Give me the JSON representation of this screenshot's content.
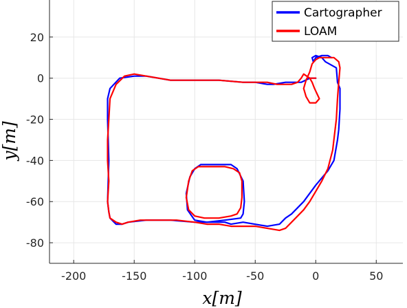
{
  "chart_data": {
    "type": "line",
    "xlabel": "x[m]",
    "ylabel": "y[m]",
    "xlim": [
      -220,
      72
    ],
    "ylim": [
      -90,
      38
    ],
    "xticks": [
      -200,
      -150,
      -100,
      -50,
      0,
      50
    ],
    "yticks": [
      -80,
      -60,
      -40,
      -20,
      0,
      20
    ],
    "grid": true,
    "legend_position": "top-right",
    "series": [
      {
        "name": "Cartographer",
        "color": "#0000ff",
        "x": [
          0,
          -5,
          -12,
          -25,
          -35,
          -40,
          -50,
          -60,
          -80,
          -100,
          -120,
          -140,
          -150,
          -162,
          -170,
          -172,
          -172,
          -171,
          -172,
          -171,
          -170,
          -165,
          -160,
          -155,
          -140,
          -120,
          -100,
          -90,
          -80,
          -75,
          -70,
          -60,
          -40,
          -30,
          -25,
          -20,
          -10,
          0,
          10,
          15,
          18,
          19,
          20,
          20,
          18,
          17,
          8,
          5,
          0,
          -3,
          -2,
          0,
          5,
          10,
          13
        ],
        "y": [
          0,
          0,
          -2,
          -2,
          -3,
          -3,
          -2,
          -2,
          -1,
          -1,
          -1,
          1,
          1,
          0,
          -5,
          -10,
          -20,
          -40,
          -60,
          -65,
          -68,
          -71,
          -71,
          -70,
          -69,
          -69,
          -70,
          -70,
          -70,
          -70,
          -71,
          -70,
          -72,
          -71,
          -68,
          -66,
          -60,
          -52,
          -45,
          -40,
          -30,
          -25,
          -15,
          -5,
          -2,
          5,
          8,
          10,
          11,
          10,
          8,
          10,
          11,
          11,
          10
        ]
      },
      {
        "name": "Cartographer",
        "color": "#0000ff",
        "x": [
          -95,
          -85,
          -75,
          -70,
          -65,
          -60,
          -59,
          -60,
          -62,
          -75,
          -90,
          -100,
          -106,
          -107,
          -104,
          -100,
          -95
        ],
        "y": [
          -42,
          -42,
          -42,
          -42,
          -44,
          -50,
          -60,
          -66,
          -68,
          -69,
          -70,
          -69,
          -64,
          -56,
          -48,
          -44,
          -42
        ]
      },
      {
        "name": "LOAM",
        "color": "#ff0000",
        "x": [
          0,
          -5,
          -10,
          -12,
          -15,
          -20,
          -25,
          -28,
          -32,
          -40,
          -50,
          -60,
          -80,
          -100,
          -120,
          -140,
          -150,
          -158,
          -165,
          -170,
          -171,
          -172,
          -172,
          -171,
          -172,
          -171,
          -170,
          -165,
          -160,
          -155,
          -145,
          -130,
          -115,
          -100,
          -90,
          -80,
          -70,
          -60,
          -50,
          -40,
          -30,
          -25,
          -20,
          -15,
          -10,
          -5,
          0,
          5,
          10,
          14,
          17,
          18,
          19,
          20,
          19,
          17,
          15,
          12,
          8,
          4,
          3,
          0,
          -3,
          -5,
          -8,
          -10,
          -8,
          -5,
          0,
          3,
          -1,
          -3,
          -5
        ],
        "y": [
          0,
          0,
          2,
          0,
          -2,
          -3,
          -3,
          -3,
          -3,
          -2,
          -2,
          -2,
          -1,
          -1,
          -1,
          1,
          2,
          1,
          -3,
          -10,
          -20,
          -30,
          -40,
          -50,
          -60,
          -65,
          -68,
          -70,
          -71,
          -70,
          -69,
          -69,
          -69,
          -70,
          -71,
          -71,
          -72,
          -72,
          -72,
          -73,
          -74,
          -73,
          -70,
          -67,
          -64,
          -60,
          -55,
          -50,
          -44,
          -35,
          -20,
          -10,
          -2,
          5,
          8,
          9,
          10,
          10,
          10,
          10,
          10,
          9,
          7,
          3,
          -1,
          -5,
          -9,
          -12,
          -12,
          -10,
          -5,
          -2,
          0
        ]
      },
      {
        "name": "LOAM",
        "color": "#ff0000",
        "x": [
          -97,
          -85,
          -75,
          -68,
          -63,
          -61,
          -61,
          -62,
          -65,
          -70,
          -80,
          -92,
          -100,
          -105,
          -107,
          -105,
          -102,
          -97
        ],
        "y": [
          -43,
          -43,
          -43,
          -44,
          -46,
          -50,
          -58,
          -63,
          -66,
          -67,
          -68,
          -68,
          -67,
          -64,
          -58,
          -50,
          -45,
          -43
        ]
      }
    ]
  }
}
